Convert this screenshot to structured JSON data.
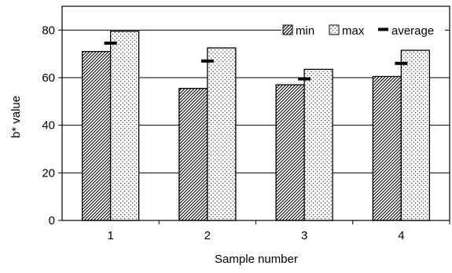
{
  "chart_data": {
    "type": "bar",
    "title": "",
    "xlabel": "Sample number",
    "ylabel": "b* value",
    "categories": [
      "1",
      "2",
      "3",
      "4"
    ],
    "ylim": [
      0,
      90
    ],
    "yticks": [
      0,
      20,
      40,
      60,
      80
    ],
    "grid": true,
    "legend": "top-right",
    "series": [
      {
        "name": "min",
        "values": [
          71,
          55.5,
          57,
          60.5
        ],
        "style": "diagonal-hatch"
      },
      {
        "name": "max",
        "values": [
          79.5,
          72.5,
          63.5,
          71.5
        ],
        "style": "dotted"
      },
      {
        "name": "average",
        "values": [
          74.5,
          67,
          59.5,
          66
        ],
        "style": "marker-dash"
      }
    ]
  }
}
